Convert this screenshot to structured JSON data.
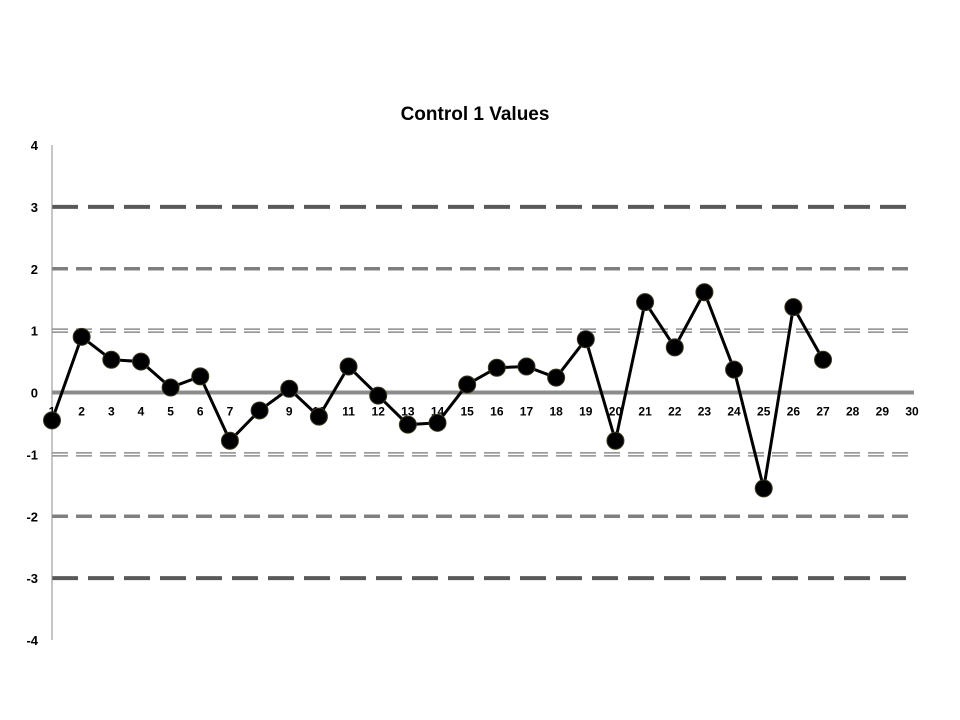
{
  "chart_data": {
    "type": "line",
    "title": "Control 1 Values",
    "xlabel": "",
    "ylabel": "",
    "xlim": [
      1,
      30
    ],
    "ylim": [
      -4,
      4
    ],
    "x_ticks": [
      1,
      2,
      3,
      4,
      5,
      6,
      7,
      8,
      9,
      10,
      11,
      12,
      13,
      14,
      15,
      16,
      17,
      18,
      19,
      20,
      21,
      22,
      23,
      24,
      25,
      26,
      27,
      28,
      29,
      30
    ],
    "y_ticks": [
      4,
      3,
      2,
      1,
      0,
      -1,
      -2,
      -3,
      -4
    ],
    "grid": false,
    "legend": "none",
    "reference_lines": [
      {
        "y": 3,
        "style": "long-dash",
        "color": "#595959"
      },
      {
        "y": 2,
        "style": "dash",
        "color": "#7f7f7f"
      },
      {
        "y": 1,
        "style": "double-dash",
        "color": "#8c8c8c"
      },
      {
        "y": 0,
        "style": "solid",
        "color": "#8c8c8c"
      },
      {
        "y": -1,
        "style": "double-dash",
        "color": "#8c8c8c"
      },
      {
        "y": -2,
        "style": "dash",
        "color": "#7f7f7f"
      },
      {
        "y": -3,
        "style": "long-dash",
        "color": "#595959"
      }
    ],
    "series": [
      {
        "color": "#000000",
        "x": [
          1,
          2,
          3,
          4,
          5,
          6,
          7,
          8,
          9,
          10,
          11,
          12,
          13,
          14,
          15,
          16,
          17,
          18,
          19,
          20,
          21,
          22,
          23,
          24,
          25,
          26,
          27
        ],
        "values": [
          -0.45,
          0.9,
          0.53,
          0.5,
          0.08,
          0.26,
          -0.78,
          -0.29,
          0.06,
          -0.39,
          0.42,
          -0.05,
          -0.52,
          -0.49,
          0.13,
          0.4,
          0.42,
          0.24,
          0.86,
          -0.78,
          1.46,
          0.73,
          1.62,
          0.37,
          -1.55,
          1.38,
          0.53
        ]
      }
    ]
  }
}
